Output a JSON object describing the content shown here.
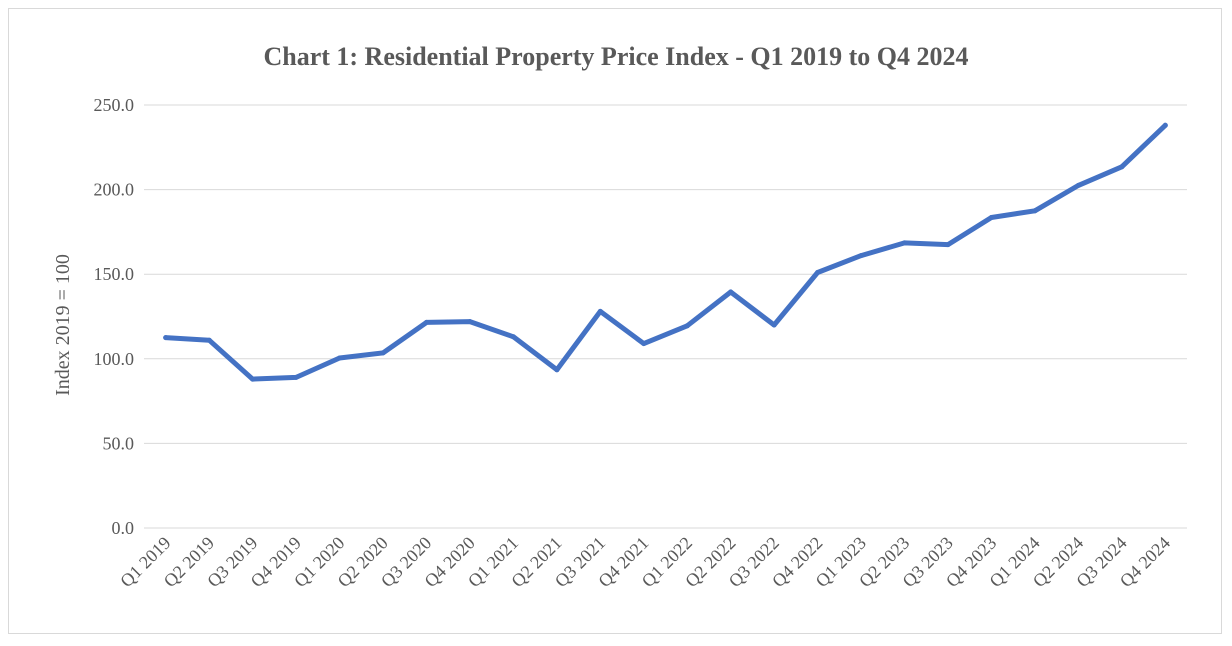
{
  "chart_data": {
    "type": "line",
    "title": "Chart 1: Residential Property Price Index - Q1 2019 to Q4 2024",
    "xlabel": "",
    "ylabel": "Index 2019 = 100",
    "ylim": [
      0,
      250
    ],
    "yticks": [
      "0.0",
      "50.0",
      "100.0",
      "150.0",
      "200.0",
      "250.0"
    ],
    "ytick_values": [
      0,
      50,
      100,
      150,
      200,
      250
    ],
    "grid": true,
    "legend": "none",
    "categories": [
      "Q1 2019",
      "Q2 2019",
      "Q3 2019",
      "Q4 2019",
      "Q1 2020",
      "Q2 2020",
      "Q3 2020",
      "Q4 2020",
      "Q1 2021",
      "Q2 2021",
      "Q3 2021",
      "Q4 2021",
      "Q1 2022",
      "Q2 2022",
      "Q3 2022",
      "Q4 2022",
      "Q1 2023",
      "Q2 2023",
      "Q3 2023",
      "Q4 2023",
      "Q1 2024",
      "Q2 2024",
      "Q3 2024",
      "Q4 2024"
    ],
    "series": [
      {
        "values": [
          112.5,
          111.0,
          88.0,
          89.0,
          100.5,
          103.5,
          121.5,
          122.0,
          113.0,
          93.5,
          128.0,
          109.0,
          119.5,
          139.5,
          120.0,
          151.0,
          161.0,
          168.5,
          167.5,
          183.5,
          187.5,
          202.5,
          213.5,
          238.0
        ]
      }
    ],
    "colors": {
      "line": "#4472c4",
      "grid": "#d9d9d9",
      "text": "#595959"
    }
  }
}
